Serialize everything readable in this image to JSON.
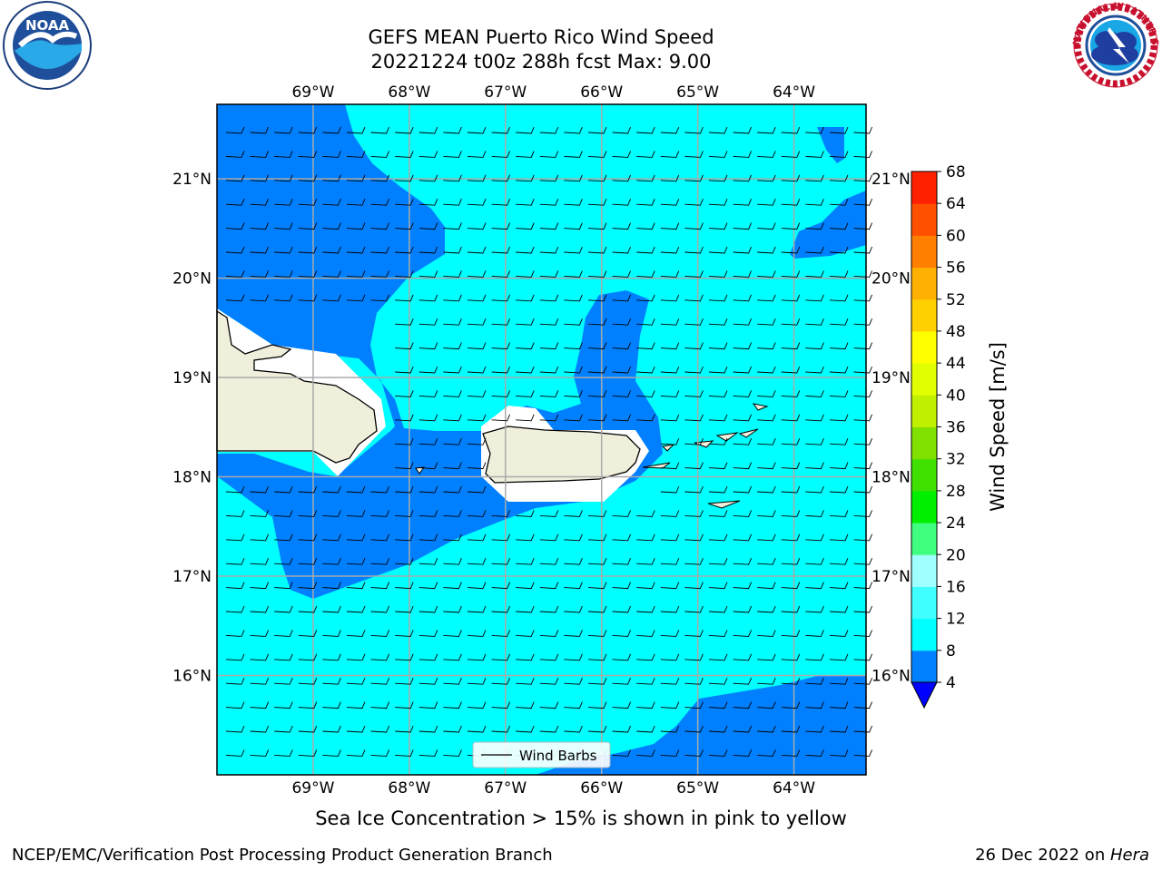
{
  "header": {
    "title_line1": "GEFS MEAN Puerto Rico Wind Speed",
    "title_line2": "20221224 t00z 288h fcst   Max: 9.00"
  },
  "logos": {
    "left": {
      "name": "noaa-logo",
      "text": "NOAA"
    },
    "right": {
      "name": "nws-logo",
      "ring_text": "NATIONAL WEATHER SERVICE"
    }
  },
  "map": {
    "lon_labels": [
      "69°W",
      "68°W",
      "67°W",
      "66°W",
      "65°W",
      "64°W"
    ],
    "lat_labels": [
      "21°N",
      "20°N",
      "19°N",
      "18°N",
      "17°N",
      "16°N"
    ],
    "lon_range": [
      -70.0,
      -63.25
    ],
    "lat_range": [
      15.0,
      21.75
    ],
    "colors": {
      "ocean_high": "#00ffff",
      "ocean_low": "#0080ff",
      "land": "#f0efdc"
    },
    "legend_label": "Wind Barbs"
  },
  "colorbar": {
    "label": "Wind Speed [m/s]",
    "ticks": [
      "4",
      "8",
      "12",
      "16",
      "20",
      "24",
      "28",
      "32",
      "36",
      "40",
      "44",
      "48",
      "52",
      "56",
      "60",
      "64",
      "68"
    ],
    "colors": [
      "#0080ff",
      "#00ffff",
      "#40ffff",
      "#a0ffff",
      "#40ff80",
      "#00f000",
      "#40e000",
      "#80e000",
      "#c0f000",
      "#e0ff00",
      "#ffff00",
      "#ffd000",
      "#ffb000",
      "#ff8000",
      "#ff5000",
      "#ff2000"
    ],
    "under_color": "#0000ff"
  },
  "note": "Sea Ice Concentration > 15% is shown in pink to yellow",
  "footer": {
    "left": "NCEP/EMC/Verification Post Processing Product Generation Branch",
    "right_date": "26 Dec 2022 on ",
    "right_machine": "Hera"
  }
}
